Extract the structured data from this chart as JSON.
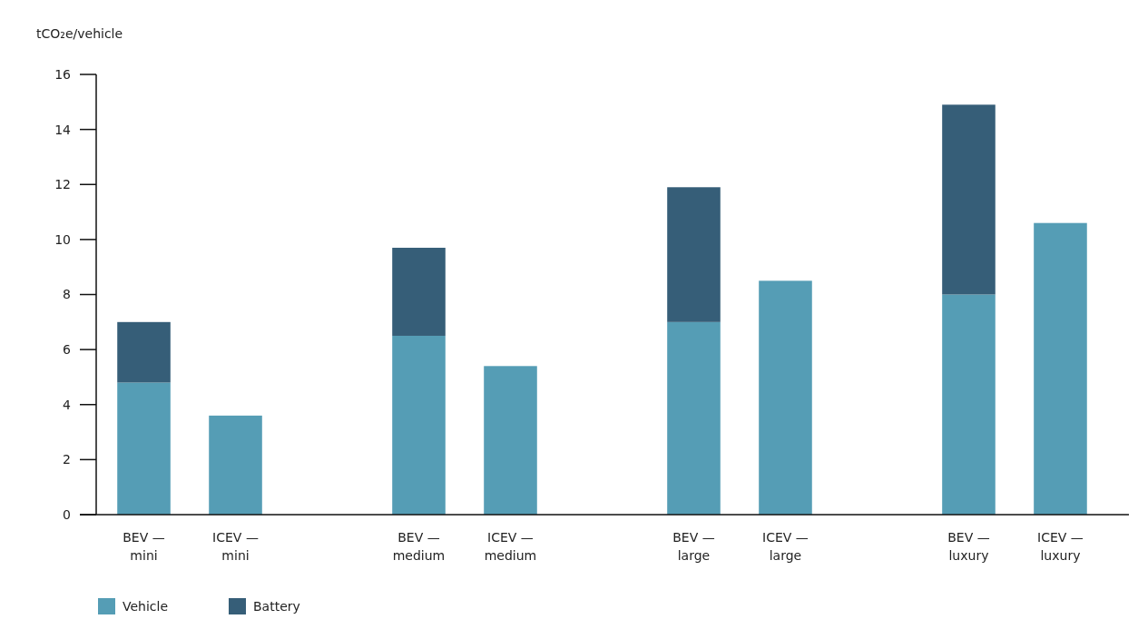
{
  "chart_data": {
    "type": "bar",
    "stacked": true,
    "ylabel": "tCO₂e/vehicle",
    "categories": [
      "BEV — mini",
      "ICEV — mini",
      null,
      "BEV — medium",
      "ICEV — medium",
      null,
      "BEV — large",
      "ICEV — large",
      null,
      "BEV — luxury",
      "ICEV — luxury"
    ],
    "series": [
      {
        "name": "Vehicle",
        "color": "#559db5",
        "values": [
          4.8,
          3.6,
          null,
          6.5,
          5.4,
          null,
          7.0,
          8.5,
          null,
          8.0,
          10.6
        ]
      },
      {
        "name": "Battery",
        "color": "#365e78",
        "values": [
          2.2,
          null,
          null,
          3.2,
          null,
          null,
          4.9,
          null,
          null,
          6.9,
          null
        ]
      }
    ],
    "ylim": [
      0,
      16
    ],
    "yticks": [
      0,
      2,
      4,
      6,
      8,
      10,
      12,
      14,
      16
    ],
    "grid": false,
    "legend": "bottom left"
  }
}
